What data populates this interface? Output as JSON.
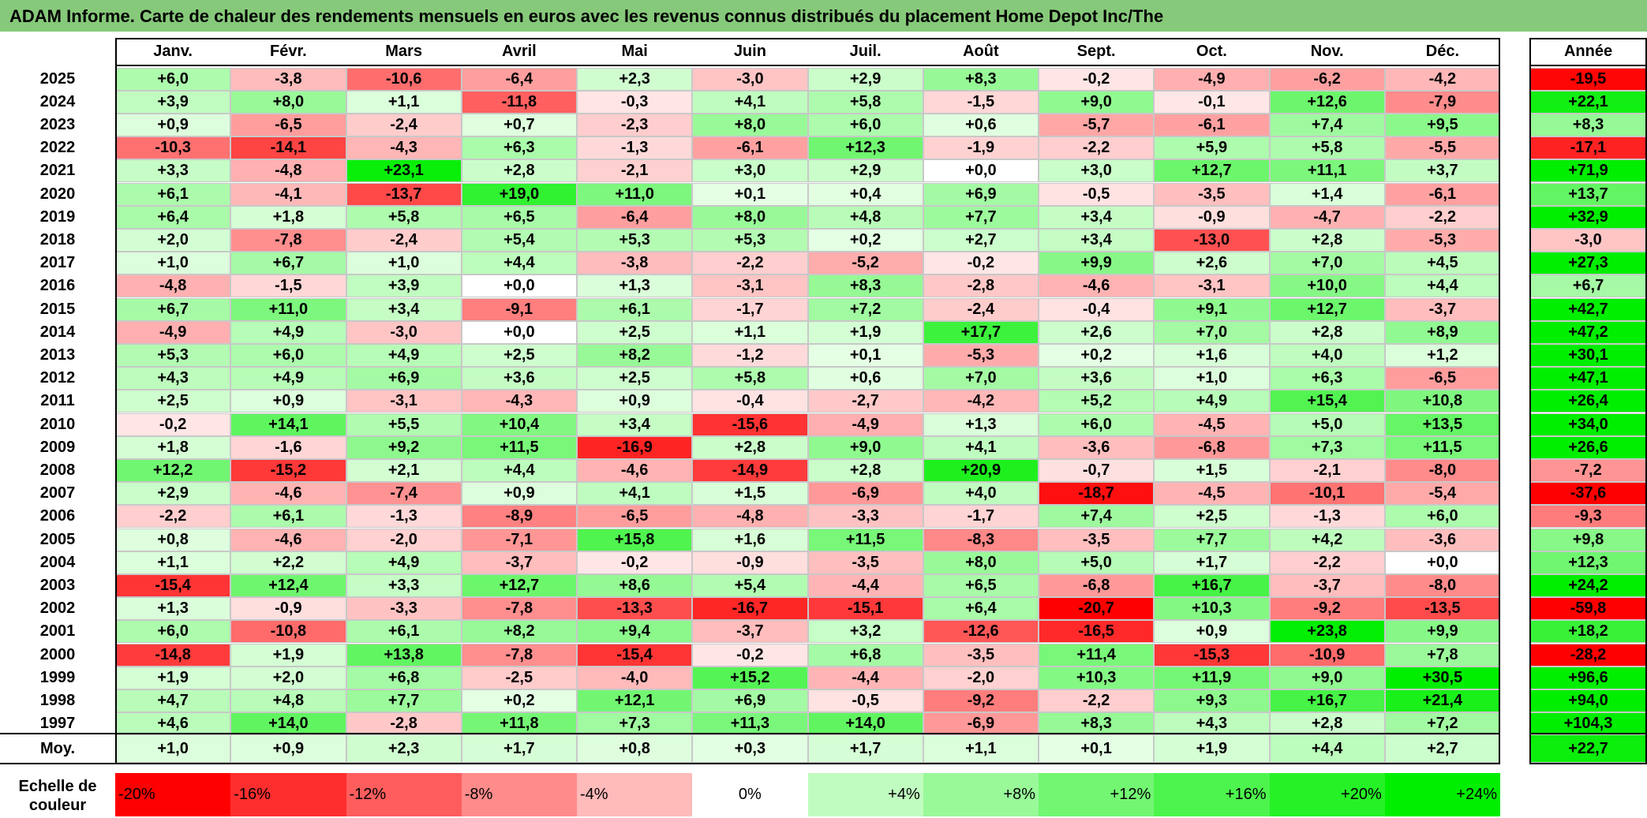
{
  "title": "ADAM Informe. Carte de chaleur des rendements mensuels en euros avec les revenus connus distribués du placement Home Depot Inc/The",
  "chart_data": {
    "type": "heatmap",
    "title": "ADAM Informe. Carte de chaleur des rendements mensuels en euros avec les revenus connus distribués du placement Home Depot Inc/The",
    "months": [
      "Janv.",
      "Févr.",
      "Mars",
      "Avril",
      "Mai",
      "Juin",
      "Juil.",
      "Août",
      "Sept.",
      "Oct.",
      "Nov.",
      "Déc."
    ],
    "annual_header": "Année",
    "years": [
      "2025",
      "2024",
      "2023",
      "2022",
      "2021",
      "2020",
      "2019",
      "2018",
      "2017",
      "2016",
      "2015",
      "2014",
      "2013",
      "2012",
      "2011",
      "2010",
      "2009",
      "2008",
      "2007",
      "2006",
      "2005",
      "2004",
      "2003",
      "2002",
      "2001",
      "2000",
      "1999",
      "1998",
      "1997"
    ],
    "values": [
      [
        "+6,0",
        "-3,8",
        "-10,6",
        "-6,4",
        "+2,3",
        "-3,0",
        "+2,9",
        "+8,3",
        "-0,2",
        "-4,9",
        "-6,2",
        "-4,2"
      ],
      [
        "+3,9",
        "+8,0",
        "+1,1",
        "-11,8",
        "-0,3",
        "+4,1",
        "+5,8",
        "-1,5",
        "+9,0",
        "-0,1",
        "+12,6",
        "-7,9"
      ],
      [
        "+0,9",
        "-6,5",
        "-2,4",
        "+0,7",
        "-2,3",
        "+8,0",
        "+6,0",
        "+0,6",
        "-5,7",
        "-6,1",
        "+7,4",
        "+9,5"
      ],
      [
        "-10,3",
        "-14,1",
        "-4,3",
        "+6,3",
        "-1,3",
        "-6,1",
        "+12,3",
        "-1,9",
        "-2,2",
        "+5,9",
        "+5,8",
        "-5,5"
      ],
      [
        "+3,3",
        "-4,8",
        "+23,1",
        "+2,8",
        "-2,1",
        "+3,0",
        "+2,9",
        "+0,0",
        "+3,0",
        "+12,7",
        "+11,1",
        "+3,7"
      ],
      [
        "+6,1",
        "-4,1",
        "-13,7",
        "+19,0",
        "+11,0",
        "+0,1",
        "+0,4",
        "+6,9",
        "-0,5",
        "-3,5",
        "+1,4",
        "-6,1"
      ],
      [
        "+6,4",
        "+1,8",
        "+5,8",
        "+6,5",
        "-6,4",
        "+8,0",
        "+4,8",
        "+7,7",
        "+3,4",
        "-0,9",
        "-4,7",
        "-2,2"
      ],
      [
        "+2,0",
        "-7,8",
        "-2,4",
        "+5,4",
        "+5,3",
        "+5,3",
        "+0,2",
        "+2,7",
        "+3,4",
        "-13,0",
        "+2,8",
        "-5,3"
      ],
      [
        "+1,0",
        "+6,7",
        "+1,0",
        "+4,4",
        "-3,8",
        "-2,2",
        "-5,2",
        "-0,2",
        "+9,9",
        "+2,6",
        "+7,0",
        "+4,5"
      ],
      [
        "-4,8",
        "-1,5",
        "+3,9",
        "+0,0",
        "+1,3",
        "-3,1",
        "+8,3",
        "-2,8",
        "-4,6",
        "-3,1",
        "+10,0",
        "+4,4"
      ],
      [
        "+6,7",
        "+11,0",
        "+3,4",
        "-9,1",
        "+6,1",
        "-1,7",
        "+7,2",
        "-2,4",
        "-0,4",
        "+9,1",
        "+12,7",
        "-3,7"
      ],
      [
        "-4,9",
        "+4,9",
        "-3,0",
        "+0,0",
        "+2,5",
        "+1,1",
        "+1,9",
        "+17,7",
        "+2,6",
        "+7,0",
        "+2,8",
        "+8,9"
      ],
      [
        "+5,3",
        "+6,0",
        "+4,9",
        "+2,5",
        "+8,2",
        "-1,2",
        "+0,1",
        "-5,3",
        "+0,2",
        "+1,6",
        "+4,0",
        "+1,2"
      ],
      [
        "+4,3",
        "+4,9",
        "+6,9",
        "+3,6",
        "+2,5",
        "+5,8",
        "+0,6",
        "+7,0",
        "+3,6",
        "+1,0",
        "+6,3",
        "-6,5"
      ],
      [
        "+2,5",
        "+0,9",
        "-3,1",
        "-4,3",
        "+0,9",
        "-0,4",
        "-2,7",
        "-4,2",
        "+5,2",
        "+4,9",
        "+15,4",
        "+10,8"
      ],
      [
        "-0,2",
        "+14,1",
        "+5,5",
        "+10,4",
        "+3,4",
        "-15,6",
        "-4,9",
        "+1,3",
        "+6,0",
        "-4,5",
        "+5,0",
        "+13,5"
      ],
      [
        "+1,8",
        "-1,6",
        "+9,2",
        "+11,5",
        "-16,9",
        "+2,8",
        "+9,0",
        "+4,1",
        "-3,6",
        "-6,8",
        "+7,3",
        "+11,5"
      ],
      [
        "+12,2",
        "-15,2",
        "+2,1",
        "+4,4",
        "-4,6",
        "-14,9",
        "+2,8",
        "+20,9",
        "-0,7",
        "+1,5",
        "-2,1",
        "-8,0"
      ],
      [
        "+2,9",
        "-4,6",
        "-7,4",
        "+0,9",
        "+4,1",
        "+1,5",
        "-6,9",
        "+4,0",
        "-18,7",
        "-4,5",
        "-10,1",
        "-5,4"
      ],
      [
        "-2,2",
        "+6,1",
        "-1,3",
        "-8,9",
        "-6,5",
        "-4,8",
        "-3,3",
        "-1,7",
        "+7,4",
        "+2,5",
        "-1,3",
        "+6,0"
      ],
      [
        "+0,8",
        "-4,6",
        "-2,0",
        "-7,1",
        "+15,8",
        "+1,6",
        "+11,5",
        "-8,3",
        "-3,5",
        "+7,7",
        "+4,2",
        "-3,6"
      ],
      [
        "+1,1",
        "+2,2",
        "+4,9",
        "-3,7",
        "-0,2",
        "-0,9",
        "-3,5",
        "+8,0",
        "+5,0",
        "+1,7",
        "-2,2",
        "+0,0"
      ],
      [
        "-15,4",
        "+12,4",
        "+3,3",
        "+12,7",
        "+8,6",
        "+5,4",
        "-4,4",
        "+6,5",
        "-6,8",
        "+16,7",
        "-3,7",
        "-8,0"
      ],
      [
        "+1,3",
        "-0,9",
        "-3,3",
        "-7,8",
        "-13,3",
        "-16,7",
        "-15,1",
        "+6,4",
        "-20,7",
        "+10,3",
        "-9,2",
        "-13,5"
      ],
      [
        "+6,0",
        "-10,8",
        "+6,1",
        "+8,2",
        "+9,4",
        "-3,7",
        "+3,2",
        "-12,6",
        "-16,5",
        "+0,9",
        "+23,8",
        "+9,9"
      ],
      [
        "-14,8",
        "+1,9",
        "+13,8",
        "-7,8",
        "-15,4",
        "-0,2",
        "+6,8",
        "-3,5",
        "+11,4",
        "-15,3",
        "-10,9",
        "+7,8"
      ],
      [
        "+1,9",
        "+2,0",
        "+6,8",
        "-2,5",
        "-4,0",
        "+15,2",
        "-4,4",
        "-2,0",
        "+10,3",
        "+11,9",
        "+9,0",
        "+30,5"
      ],
      [
        "+4,7",
        "+4,8",
        "+7,7",
        "+0,2",
        "+12,1",
        "+6,9",
        "-0,5",
        "-9,2",
        "-2,2",
        "+9,3",
        "+16,7",
        "+21,4"
      ],
      [
        "+4,6",
        "+14,0",
        "-2,8",
        "+11,8",
        "+7,3",
        "+11,3",
        "+14,0",
        "-6,9",
        "+8,3",
        "+4,3",
        "+2,8",
        "+7,2"
      ]
    ],
    "annual": [
      "-19,5",
      "+22,1",
      "+8,3",
      "-17,1",
      "+71,9",
      "+13,7",
      "+32,9",
      "-3,0",
      "+27,3",
      "+6,7",
      "+42,7",
      "+47,2",
      "+30,1",
      "+47,1",
      "+26,4",
      "+34,0",
      "+26,6",
      "-7,2",
      "-37,6",
      "-9,3",
      "+9,8",
      "+12,3",
      "+24,2",
      "-59,8",
      "+18,2",
      "-28,2",
      "+96,6",
      "+94,0",
      "+104,3"
    ],
    "average_label": "Moy.",
    "average": [
      "+1,0",
      "+0,9",
      "+2,3",
      "+1,7",
      "+0,8",
      "+0,3",
      "+1,7",
      "+1,1",
      "+0,1",
      "+1,9",
      "+4,4",
      "+2,7"
    ],
    "average_annual": "+22,7",
    "scale_label_line1": "Echelle de",
    "scale_label_line2": "couleur",
    "scale": [
      "-20%",
      "-16%",
      "-12%",
      "-8%",
      "-4%",
      "0%",
      "+4%",
      "+8%",
      "+12%",
      "+16%",
      "+20%",
      "+24%"
    ],
    "scale_values": [
      -20,
      -16,
      -12,
      -8,
      -4,
      0,
      4,
      8,
      12,
      16,
      20,
      24
    ],
    "colors": {
      "negative": "#ff0000",
      "neutral": "#ffffff",
      "positive": "#00ee00"
    }
  }
}
